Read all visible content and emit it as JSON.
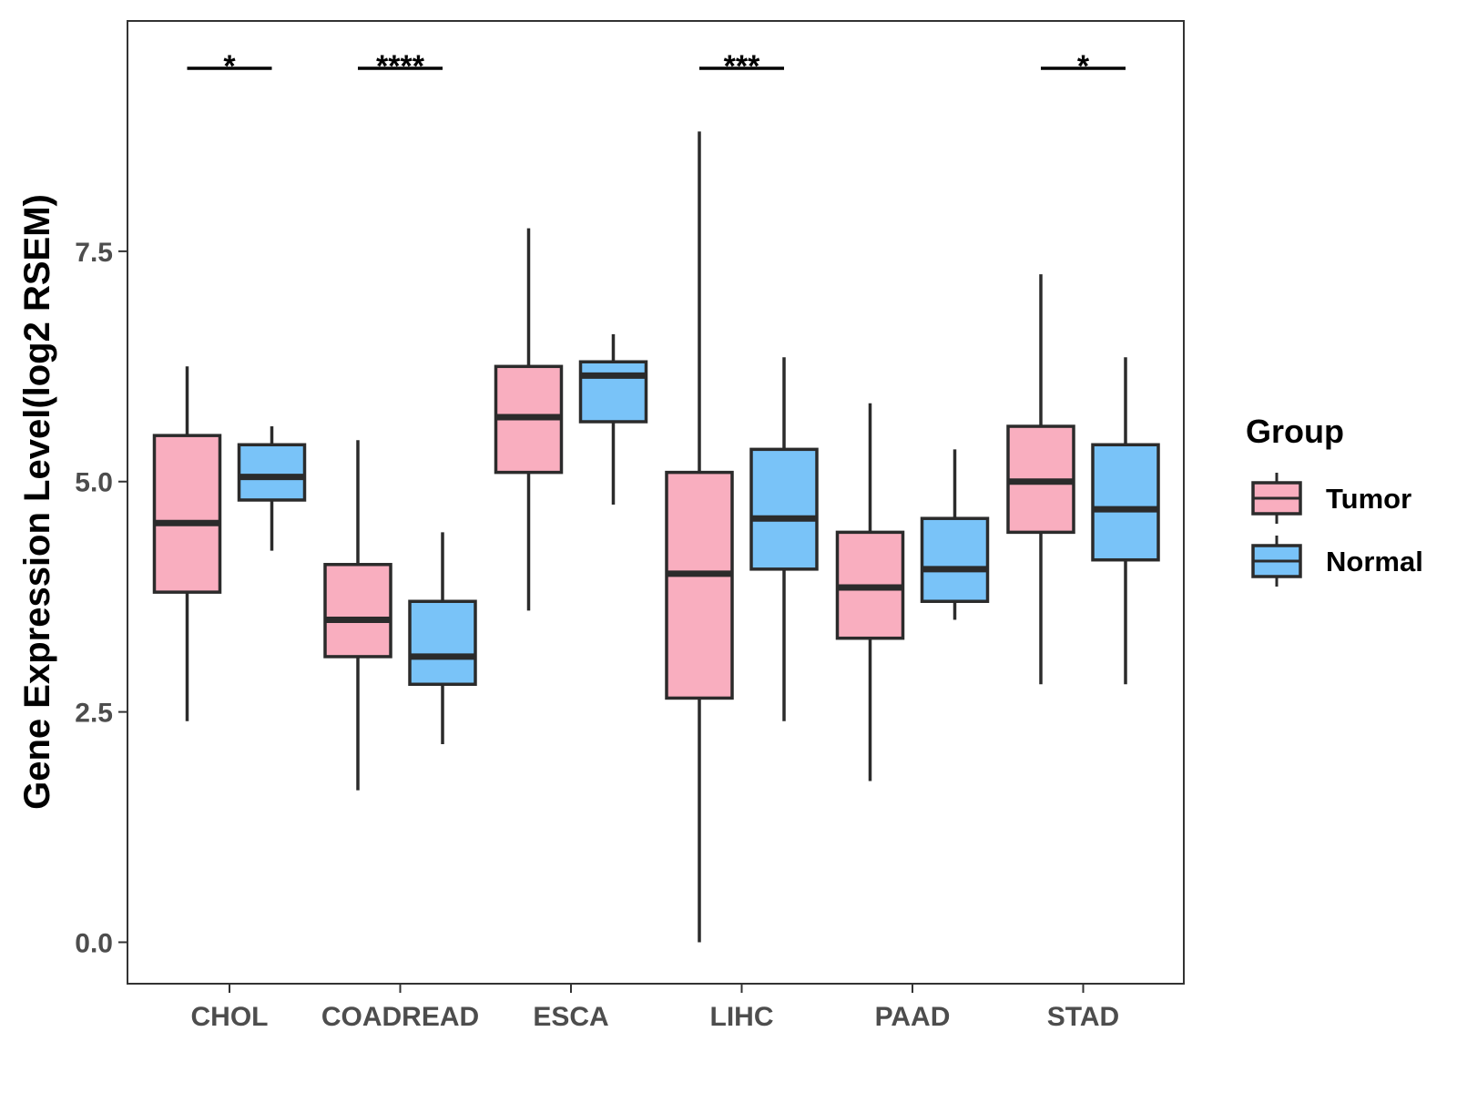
{
  "chart_data": {
    "type": "boxplot",
    "title": "",
    "xlabel": "",
    "ylabel": "Gene Expression Level(log2 RSEM)",
    "ylim": [
      -0.45,
      10.0
    ],
    "yticks": [
      0.0,
      2.5,
      5.0,
      7.5
    ],
    "ytick_labels": [
      "0.0",
      "2.5",
      "5.0",
      "7.5"
    ],
    "categories": [
      "CHOL",
      "COADREAD",
      "ESCA",
      "LIHC",
      "PAAD",
      "STAD"
    ],
    "legend": {
      "title": "Group",
      "position": "right",
      "entries": [
        "Tumor",
        "Normal"
      ]
    },
    "series": [
      {
        "name": "Tumor",
        "color": "#f9aebf",
        "boxes": [
          {
            "whisker_low": 2.4,
            "q1": 3.8,
            "median": 4.55,
            "q3": 5.5,
            "whisker_high": 6.25
          },
          {
            "whisker_low": 1.65,
            "q1": 3.1,
            "median": 3.5,
            "q3": 4.1,
            "whisker_high": 5.45
          },
          {
            "whisker_low": 3.6,
            "q1": 5.1,
            "median": 5.7,
            "q3": 6.25,
            "whisker_high": 7.75
          },
          {
            "whisker_low": 0.0,
            "q1": 2.65,
            "median": 4.0,
            "q3": 5.1,
            "whisker_high": 8.8
          },
          {
            "whisker_low": 1.75,
            "q1": 3.3,
            "median": 3.85,
            "q3": 4.45,
            "whisker_high": 5.85
          },
          {
            "whisker_low": 2.8,
            "q1": 4.45,
            "median": 5.0,
            "q3": 5.6,
            "whisker_high": 7.25
          }
        ]
      },
      {
        "name": "Normal",
        "color": "#79c3f8",
        "boxes": [
          {
            "whisker_low": 4.25,
            "q1": 4.8,
            "median": 5.05,
            "q3": 5.4,
            "whisker_high": 5.6
          },
          {
            "whisker_low": 2.15,
            "q1": 2.8,
            "median": 3.1,
            "q3": 3.7,
            "whisker_high": 4.45
          },
          {
            "whisker_low": 4.75,
            "q1": 5.65,
            "median": 6.15,
            "q3": 6.3,
            "whisker_high": 6.6
          },
          {
            "whisker_low": 2.4,
            "q1": 4.05,
            "median": 4.6,
            "q3": 5.35,
            "whisker_high": 6.35
          },
          {
            "whisker_low": 3.5,
            "q1": 3.7,
            "median": 4.05,
            "q3": 4.6,
            "whisker_high": 5.35
          },
          {
            "whisker_low": 2.8,
            "q1": 4.15,
            "median": 4.7,
            "q3": 5.4,
            "whisker_high": 6.35
          }
        ]
      }
    ],
    "significance": [
      "*",
      "****",
      "",
      "***",
      "",
      "*"
    ]
  }
}
